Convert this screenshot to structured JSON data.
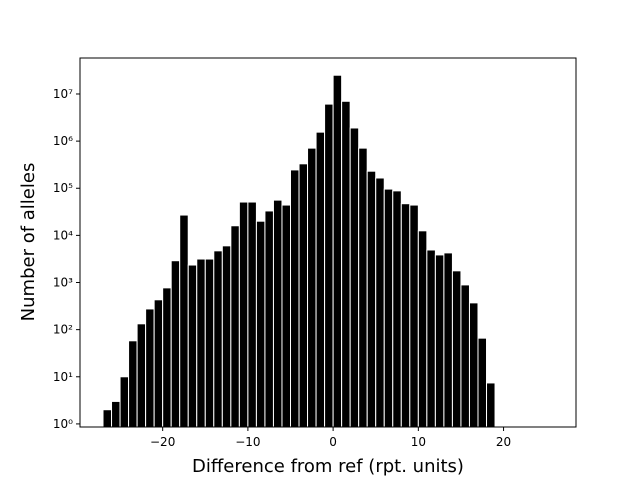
{
  "chart_data": {
    "type": "histogram",
    "xlabel": "Difference from ref (rpt. units)",
    "ylabel": "Number of alleles",
    "bins": [
      -27,
      -26,
      -25,
      -24,
      -23,
      -22,
      -21,
      -20,
      -19,
      -18,
      -17,
      -16,
      -15,
      -14,
      -13,
      -12,
      -11,
      -10,
      -9,
      -8,
      -7,
      -6,
      -5,
      -4,
      -3,
      -2,
      -1,
      0,
      1,
      2,
      3,
      4,
      5,
      6,
      7,
      8,
      9,
      10,
      11,
      12,
      13,
      14,
      15,
      16,
      17,
      18,
      19
    ],
    "counts": [
      2,
      3,
      10,
      58,
      133,
      275,
      430,
      770,
      2900,
      27000,
      2350,
      3150,
      3150,
      4700,
      6000,
      16000,
      51000,
      51000,
      20000,
      33000,
      56000,
      44000,
      245000,
      330000,
      710000,
      1550000,
      6100000,
      25000000,
      7000000,
      1900000,
      710000,
      230000,
      165000,
      96000,
      88000,
      47000,
      44000,
      12500,
      4900,
      3850,
      4250,
      1770,
      890,
      370,
      66,
      7.4
    ],
    "color": "#000000",
    "edgecolor": "#ffffff",
    "xlim": [
      -29.7,
      28.5
    ],
    "xticks": [
      {
        "value": -20,
        "label": "−20"
      },
      {
        "value": -10,
        "label": "−10"
      },
      0,
      10,
      20
    ],
    "ylim": [
      0.86,
      58000000
    ],
    "yscale": "log",
    "yticks": [
      {
        "value": 1,
        "label": "10⁰"
      },
      {
        "value": 10,
        "label": "10¹"
      },
      {
        "value": 100,
        "label": "10²"
      },
      {
        "value": 1000,
        "label": "10³"
      },
      {
        "value": 10000,
        "label": "10⁴"
      },
      {
        "value": 100000,
        "label": "10⁵"
      },
      {
        "value": 1000000,
        "label": "10⁶"
      },
      {
        "value": 10000000,
        "label": "10⁷"
      }
    ]
  }
}
